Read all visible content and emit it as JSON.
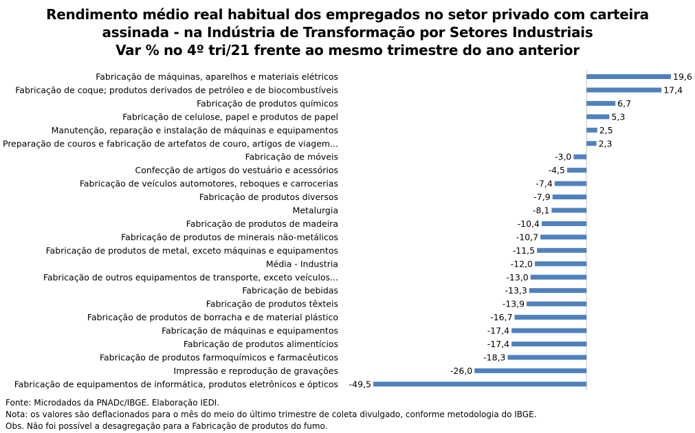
{
  "chart_data": {
    "type": "bar",
    "orientation": "horizontal",
    "title_lines": [
      "Rendimento médio real habitual dos empregados no setor privado com carteira",
      "assinada - na Indústria de Transformação por Setores Industriais",
      "Var % no 4º tri/21 frente ao mesmo trimestre do ano anterior"
    ],
    "categories": [
      "Fabricação de máquinas, aparelhos e materiais elétricos",
      "Fabricação de coque; produtos derivados de petróleo e de biocombustíveis",
      "Fabricação de produtos químicos",
      "Fabricação de celulose, papel e produtos de papel",
      "Manutenção, reparação e instalação de máquinas e equipamentos",
      "Preparação de couros e fabricação de artefatos de couro, artigos de viagem...",
      "Fabricação de móveis",
      "Confecção de artigos do vestuário e acessórios",
      "Fabricação de veículos automotores, reboques e carrocerias",
      "Fabricação de produtos diversos",
      "Metalurgia",
      "Fabricação de produtos de madeira",
      "Fabricação de produtos de minerais não-metálicos",
      "Fabricação de produtos de metal, exceto máquinas e equipamentos",
      "Média - Industria",
      "Fabricação de outros equipamentos de transporte, exceto veículos...",
      "Fabricação de bebidas",
      "Fabricação de produtos têxteis",
      "Fabricação de produtos de borracha e de material plástico",
      "Fabricação de máquinas e equipamentos",
      "Fabricação de produtos alimentícios",
      "Fabricação de produtos farmoquímicos e farmacêuticos",
      "Impressão e reprodução de gravações",
      "Fabricação de equipamentos de informática, produtos eletrônicos e ópticos"
    ],
    "values": [
      19.6,
      17.4,
      6.7,
      5.3,
      2.5,
      2.3,
      -3.0,
      -4.5,
      -7.4,
      -7.9,
      -8.1,
      -10.4,
      -10.7,
      -11.5,
      -12.0,
      -13.0,
      -13.3,
      -13.9,
      -16.7,
      -17.4,
      -17.4,
      -18.3,
      -26.0,
      -49.5
    ],
    "value_labels": [
      "19,6",
      "17,4",
      "6,7",
      "5,3",
      "2,5",
      "2,3",
      "-3,0",
      "-4,5",
      "-7,4",
      "-7,9",
      "-8,1",
      "-10,4",
      "-10,7",
      "-11,5",
      "-12,0",
      "-13,0",
      "-13,3",
      "-13,9",
      "-16,7",
      "-17,4",
      "-17,4",
      "-18,3",
      "-26,0",
      "-49,5"
    ],
    "xlim": [
      -49.5,
      19.6
    ],
    "bar_color": "#4f81bd",
    "axis_color": "#bfbfbf",
    "grid": false,
    "legend": "none"
  },
  "notes": [
    "Fonte: Microdados da PNADc/IBGE. Elaboração IEDI.",
    "Nota: os valores são deflacionados para o mês do meio do último trimestre de coleta divulgado, conforme metodologia do IBGE.",
    "Obs. Não foi possível a desagregação para a Fabricação de produtos do fumo."
  ]
}
